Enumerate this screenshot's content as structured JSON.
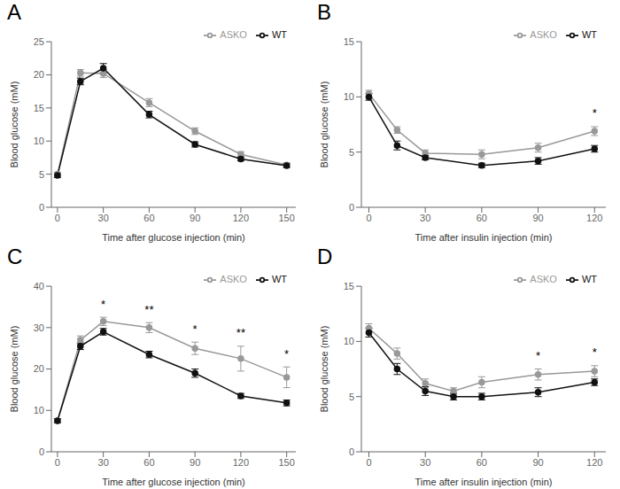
{
  "chart_data": [
    {
      "type": "line",
      "title": "A",
      "x": [
        0,
        15,
        30,
        60,
        90,
        120,
        150
      ],
      "series": [
        {
          "name": "ASKO",
          "color": "#999999",
          "marker": "circle",
          "values": [
            5.0,
            20.3,
            20.2,
            15.8,
            11.5,
            8.0,
            6.4
          ],
          "errors": [
            0.3,
            0.5,
            0.6,
            0.6,
            0.5,
            0.4,
            0.3
          ]
        },
        {
          "name": "WT",
          "color": "#111111",
          "marker": "circle",
          "values": [
            4.8,
            19.0,
            21.0,
            14.0,
            9.5,
            7.3,
            6.3
          ],
          "errors": [
            0.3,
            0.5,
            0.7,
            0.5,
            0.4,
            0.3,
            0.3
          ]
        }
      ],
      "x_label": "Time after glucose injection (min)",
      "y_label": "Blood glucose (mM)",
      "xlim": [
        -4,
        156
      ],
      "xticks": [
        0,
        30,
        60,
        90,
        120,
        150
      ],
      "ylim": [
        0,
        25
      ],
      "yticks": [
        0,
        5,
        10,
        15,
        20,
        25
      ],
      "annotations": [],
      "legend": "upper right",
      "grid": false
    },
    {
      "type": "line",
      "title": "B",
      "x": [
        0,
        15,
        30,
        60,
        90,
        120
      ],
      "series": [
        {
          "name": "ASKO",
          "color": "#999999",
          "marker": "circle",
          "values": [
            10.3,
            7.0,
            4.9,
            4.8,
            5.4,
            6.9
          ],
          "errors": [
            0.3,
            0.3,
            0.3,
            0.4,
            0.4,
            0.4
          ]
        },
        {
          "name": "WT",
          "color": "#111111",
          "marker": "circle",
          "values": [
            10.0,
            5.6,
            4.5,
            3.8,
            4.2,
            5.3
          ],
          "errors": [
            0.3,
            0.4,
            0.2,
            0.2,
            0.3,
            0.3
          ]
        }
      ],
      "x_label": "Time after insulin injection (min)",
      "y_label": "Blood glucose (mM)",
      "xlim": [
        -4,
        126
      ],
      "xticks": [
        0,
        30,
        60,
        90,
        120
      ],
      "ylim": [
        0,
        15
      ],
      "yticks": [
        0,
        5,
        10,
        15
      ],
      "annotations": [
        {
          "x": 120,
          "text": "*"
        }
      ],
      "legend": "upper right",
      "grid": false
    },
    {
      "type": "line",
      "title": "C",
      "x": [
        0,
        15,
        30,
        60,
        90,
        120,
        150
      ],
      "series": [
        {
          "name": "ASKO",
          "color": "#999999",
          "marker": "circle",
          "values": [
            7.5,
            27.0,
            31.5,
            30.0,
            25.0,
            22.5,
            18.0
          ],
          "errors": [
            0.5,
            1.0,
            1.0,
            1.2,
            1.5,
            3.0,
            2.5
          ]
        },
        {
          "name": "WT",
          "color": "#111111",
          "marker": "circle",
          "values": [
            7.5,
            25.5,
            29.0,
            23.5,
            19.0,
            13.5,
            11.8
          ],
          "errors": [
            0.5,
            0.8,
            0.8,
            0.8,
            1.0,
            0.6,
            0.7
          ]
        }
      ],
      "x_label": "Time after glucose injection (min)",
      "y_label": "Blood glucose (mM)",
      "xlim": [
        -4,
        156
      ],
      "xticks": [
        0,
        30,
        60,
        90,
        120,
        150
      ],
      "ylim": [
        0,
        40
      ],
      "yticks": [
        0,
        10,
        20,
        30,
        40
      ],
      "annotations": [
        {
          "x": 30,
          "text": "*"
        },
        {
          "x": 60,
          "text": "**"
        },
        {
          "x": 90,
          "text": "*"
        },
        {
          "x": 120,
          "text": "**"
        },
        {
          "x": 150,
          "text": "*"
        }
      ],
      "legend": "upper right",
      "grid": false
    },
    {
      "type": "line",
      "title": "D",
      "x": [
        0,
        15,
        30,
        45,
        60,
        90,
        120
      ],
      "series": [
        {
          "name": "ASKO",
          "color": "#999999",
          "marker": "circle",
          "values": [
            11.2,
            8.9,
            6.2,
            5.5,
            6.3,
            7.0,
            7.3
          ],
          "errors": [
            0.4,
            0.5,
            0.4,
            0.3,
            0.5,
            0.5,
            0.5
          ]
        },
        {
          "name": "WT",
          "color": "#111111",
          "marker": "circle",
          "values": [
            10.8,
            7.5,
            5.5,
            5.0,
            5.0,
            5.4,
            6.3
          ],
          "errors": [
            0.4,
            0.5,
            0.4,
            0.3,
            0.3,
            0.4,
            0.3
          ]
        }
      ],
      "x_label": "Time after insulin injection (min)",
      "y_label": "Blood glucose (mM)",
      "xlim": [
        -4,
        126
      ],
      "xticks": [
        0,
        30,
        60,
        90,
        120
      ],
      "ylim": [
        0,
        15
      ],
      "yticks": [
        0,
        5,
        10,
        15
      ],
      "annotations": [
        {
          "x": 90,
          "text": "*"
        },
        {
          "x": 120,
          "text": "*"
        }
      ],
      "legend": "upper right",
      "grid": false
    }
  ]
}
